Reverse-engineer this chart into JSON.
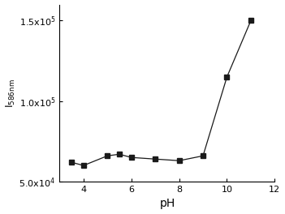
{
  "x": [
    3.5,
    4.0,
    5.0,
    5.5,
    6.0,
    7.0,
    8.0,
    9.0,
    10.0,
    11.0
  ],
  "y": [
    62000,
    60000,
    66000,
    67000,
    65000,
    64000,
    63000,
    66000,
    115000,
    150000
  ],
  "xlabel": "pH",
  "ylabel": "I$_\\mathregular{586nm}$",
  "xlim": [
    3,
    12
  ],
  "ylim": [
    50000,
    160000
  ],
  "xticks": [
    4,
    6,
    8,
    10,
    12
  ],
  "yticks": [
    50000,
    100000,
    150000
  ],
  "ytick_labels": [
    "5.0x10$^4$",
    "1.0x10$^5$",
    "1.5x10$^5$"
  ],
  "line_color": "#1a1a1a",
  "marker": "s",
  "marker_size": 4,
  "marker_color": "#1a1a1a",
  "background_color": "#ffffff",
  "linewidth": 0.9
}
